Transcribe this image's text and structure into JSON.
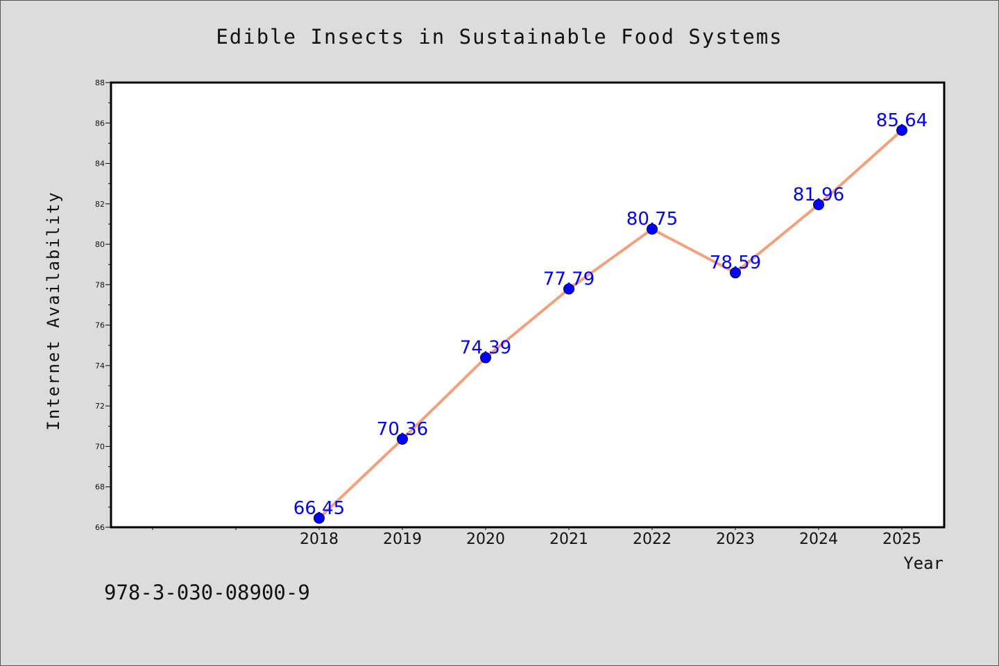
{
  "chart_data": {
    "type": "line",
    "title": "Edible Insects in Sustainable Food Systems",
    "xlabel": "Year",
    "ylabel": "Internet Availability",
    "x": [
      "2018",
      "2019",
      "2020",
      "2021",
      "2022",
      "2023",
      "2024",
      "2025"
    ],
    "series": [
      {
        "values": [
          66.45,
          70.36,
          74.39,
          77.79,
          80.75,
          78.59,
          81.96,
          85.64
        ],
        "labels": [
          "66.45",
          "70.36",
          "74.39",
          "77.79",
          "80.75",
          "78.59",
          "81.96",
          "85.64"
        ]
      }
    ],
    "ylim": [
      66,
      88
    ],
    "yticks": [
      "66",
      "68",
      "70",
      "72",
      "74",
      "76",
      "78",
      "80",
      "82",
      "84",
      "86",
      "88"
    ],
    "grid": false,
    "legend": "none",
    "colors": {
      "line": "#f4a07c",
      "marker": "#0000ff",
      "label": "#0000ff",
      "background": "#dcdcdc",
      "plot_area": "#ffffff"
    }
  },
  "footnote": "978-3-030-08900-9"
}
